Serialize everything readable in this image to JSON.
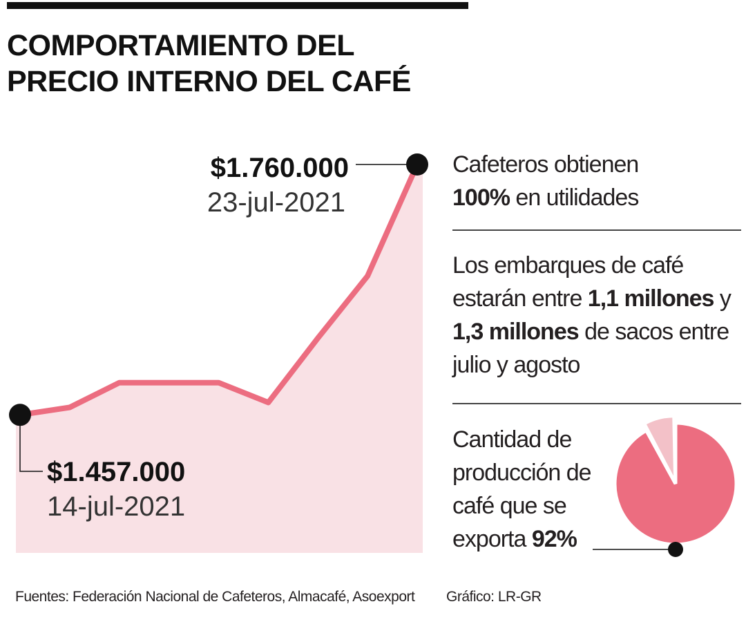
{
  "title": {
    "line1": "COMPORTAMIENTO DEL",
    "line2": "PRECIO INTERNO DEL CAFÉ"
  },
  "chart_data": [
    {
      "type": "area",
      "x": [
        "14-jul-2021",
        "",
        "",
        "",
        "",
        "",
        "",
        "",
        "23-jul-2021"
      ],
      "values": [
        1457000,
        1466000,
        1496000,
        1496000,
        1496000,
        1472000,
        1550000,
        1625000,
        1760000
      ],
      "ylim": [
        1290000,
        1780000
      ],
      "colors": {
        "line": "#ec6d80",
        "fill": "#f9e1e5",
        "marker": "#111111"
      },
      "annotations": [
        {
          "index": 8,
          "value_label": "$1.760.000",
          "date_label": "23-jul-2021"
        },
        {
          "index": 0,
          "value_label": "$1.457.000",
          "date_label": "14-jul-2021"
        }
      ]
    },
    {
      "type": "pie",
      "slices": [
        {
          "label": "exporta",
          "value": 92,
          "color": "#ec6d80"
        },
        {
          "label": "",
          "value": 8,
          "color": "#f3c1c8"
        }
      ]
    }
  ],
  "facts": {
    "f1_pre": "Cafeteros obtienen",
    "f1_bold": "100%",
    "f1_post": " en utilidades",
    "f2_a": "Los embarques de café estarán entre ",
    "f2_bold1": "1,1 millones",
    "f2_b": " y ",
    "f2_bold2": "1,3 millones",
    "f2_c": " de sacos entre julio y agosto",
    "f3_text": "Cantidad de producción de café que se exporta ",
    "f3_bold": "92%"
  },
  "footer": {
    "sources": "Fuentes: Federación Nacional de Cafeteros, Almacafé, Asoexport",
    "credit": "Gráfico: LR-GR"
  }
}
